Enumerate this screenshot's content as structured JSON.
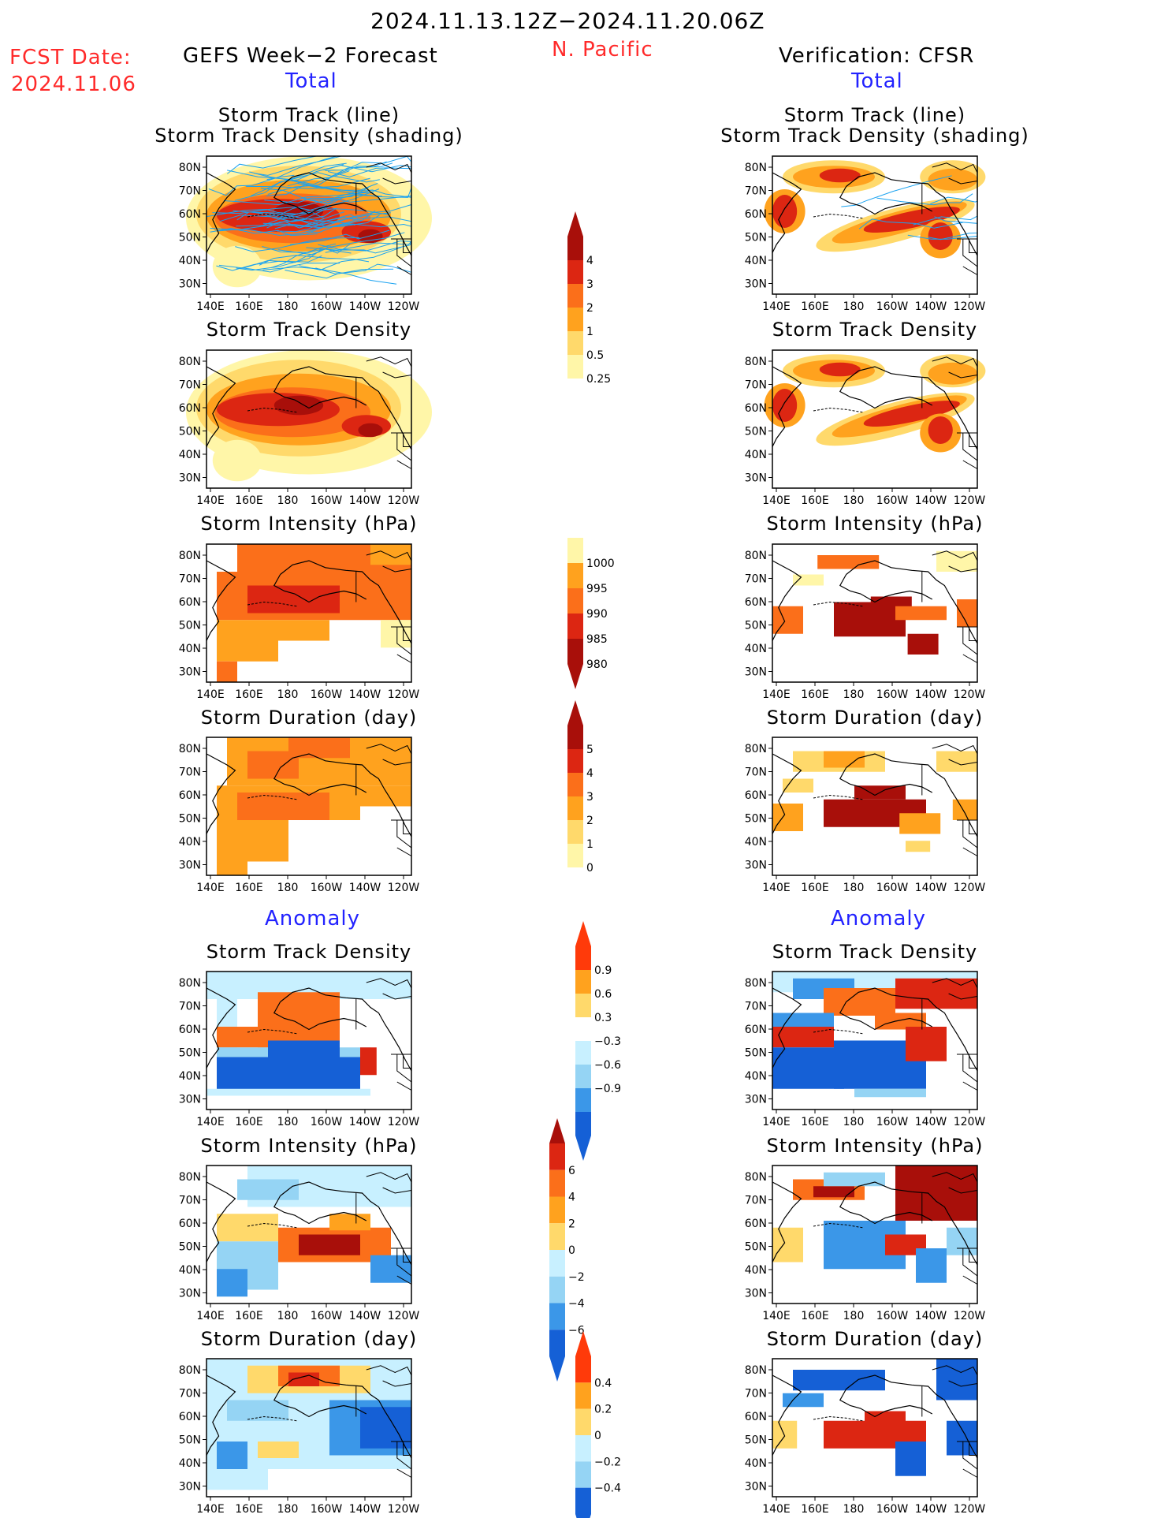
{
  "header": {
    "date_range": "2024.11.13.12Z−2024.11.20.06Z",
    "region": "N. Pacific",
    "fcst_label": "FCST Date:",
    "fcst_date": "2024.11.06",
    "left_title": "GEFS Week−2 Forecast",
    "right_title": "Verification: CFSR",
    "total_label": "Total",
    "anomaly_label": "Anomaly"
  },
  "panel_titles": {
    "track_line": "Storm Track (line)",
    "track_shading": "Storm Track Density (shading)",
    "track_density": "Storm Track Density",
    "intensity": "Storm Intensity (hPa)",
    "duration": "Storm Duration (day)"
  },
  "colors": {
    "pale": "#fff6a8",
    "light": "#ffd96b",
    "orange": "#ffa21e",
    "dorange": "#fb6f1a",
    "red": "#dc2612",
    "dred": "#a80f0a",
    "track": "#1aa2f0",
    "pblue": "#c8f0ff",
    "lblue": "#95d4f4",
    "mblue": "#3b97e8",
    "dblue": "#1560d6",
    "vred": "#ff3a0a"
  },
  "chart_data": [
    {
      "type": "heatmap",
      "name": "total-colorbar-density",
      "levels": [
        "0.25",
        "0.5",
        "1",
        "2",
        "3",
        "4"
      ]
    },
    {
      "type": "heatmap",
      "name": "total-colorbar-intensity",
      "levels": [
        "1000",
        "995",
        "990",
        "985",
        "980"
      ]
    },
    {
      "type": "heatmap",
      "name": "total-colorbar-duration",
      "levels": [
        "5",
        "4",
        "3",
        "2",
        "1",
        "0"
      ]
    },
    {
      "type": "heatmap",
      "name": "anomaly-colorbar-density",
      "levels": [
        "0.9",
        "0.6",
        "0.3",
        "−0.3",
        "−0.6",
        "−0.9"
      ]
    },
    {
      "type": "heatmap",
      "name": "anomaly-colorbar-intensity",
      "levels": [
        "6",
        "4",
        "2",
        "0",
        "−2",
        "−4",
        "−6"
      ]
    },
    {
      "type": "heatmap",
      "name": "anomaly-colorbar-duration",
      "levels": [
        "0.4",
        "0.2",
        "0",
        "−0.2",
        "−0.4"
      ]
    },
    {
      "type": "heatmap",
      "name": "map-axes",
      "x_ticks": [
        "140E",
        "160E",
        "180",
        "160W",
        "140W",
        "120W"
      ],
      "y_ticks": [
        "80N",
        "70N",
        "60N",
        "50N",
        "40N",
        "30N"
      ]
    }
  ]
}
